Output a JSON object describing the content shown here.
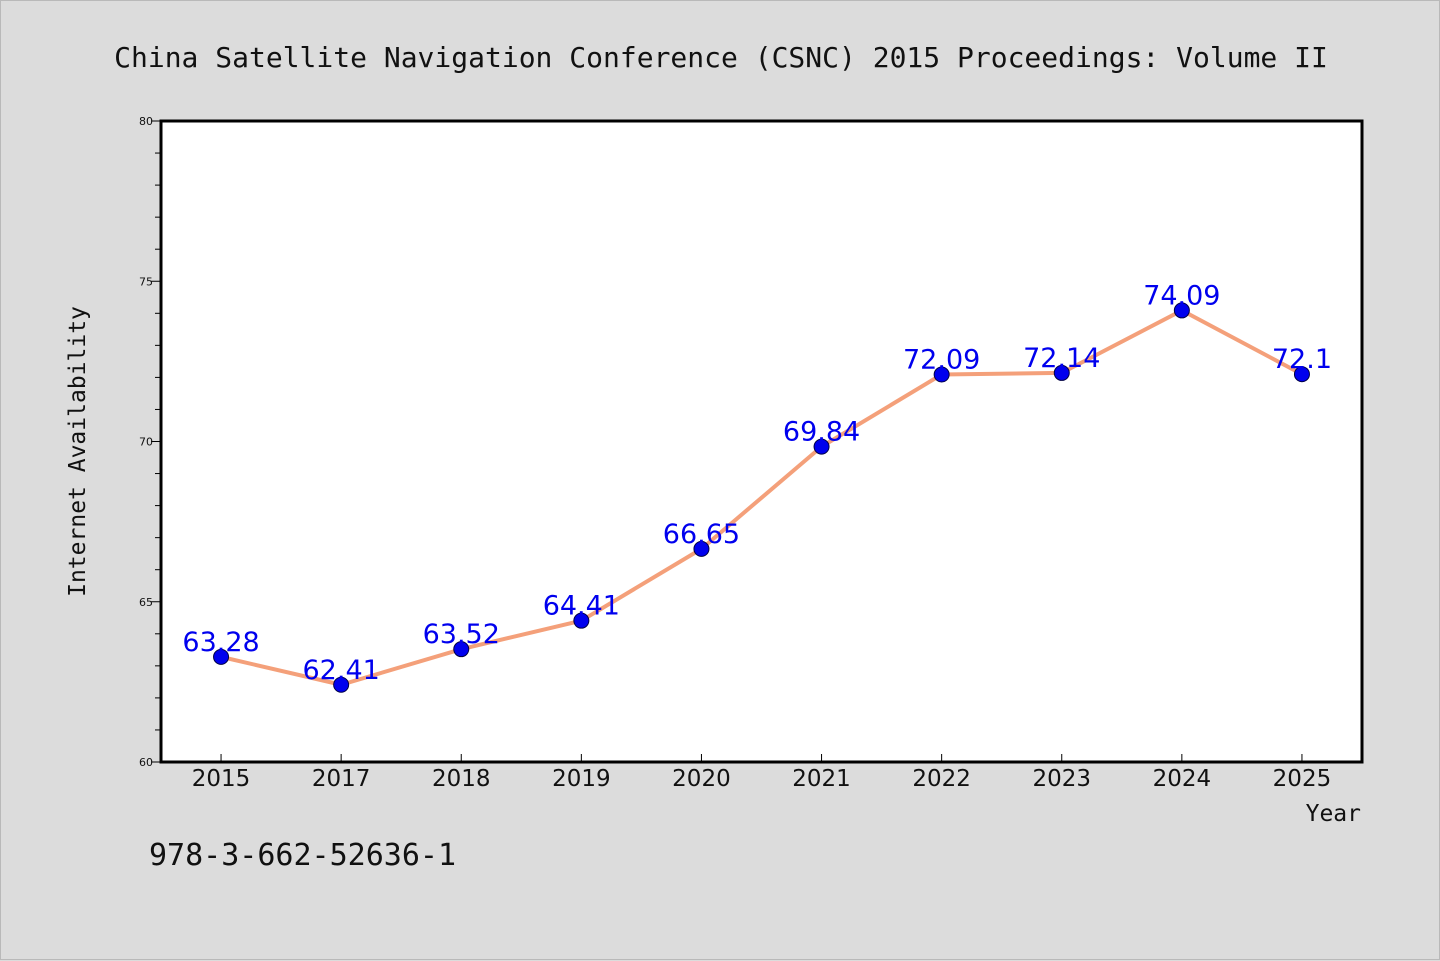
{
  "chart_data": {
    "type": "line",
    "title": "China Satellite Navigation Conference (CSNC) 2015 Proceedings: Volume II",
    "xlabel": "Year",
    "ylabel": "Internet Availability",
    "categories": [
      "2015",
      "2017",
      "2018",
      "2019",
      "2020",
      "2021",
      "2022",
      "2023",
      "2024",
      "2025"
    ],
    "series": [
      {
        "values": [
          63.28,
          62.41,
          63.52,
          64.41,
          66.65,
          69.84,
          72.09,
          72.14,
          74.09,
          72.1
        ]
      }
    ],
    "data_labels": [
      "63.28",
      "62.41",
      "63.52",
      "64.41",
      "66.65",
      "69.84",
      "72.09",
      "72.14",
      "74.09",
      "72.1"
    ],
    "ylim": [
      60,
      80
    ],
    "yticks": [
      60,
      65,
      70,
      75,
      80
    ],
    "grid": false,
    "legend": "none",
    "colors": {
      "line": "#f4a07a",
      "marker": "#0000ee",
      "label": "#0000ee"
    }
  },
  "footer": {
    "isbn": "978-3-662-52636-1"
  }
}
